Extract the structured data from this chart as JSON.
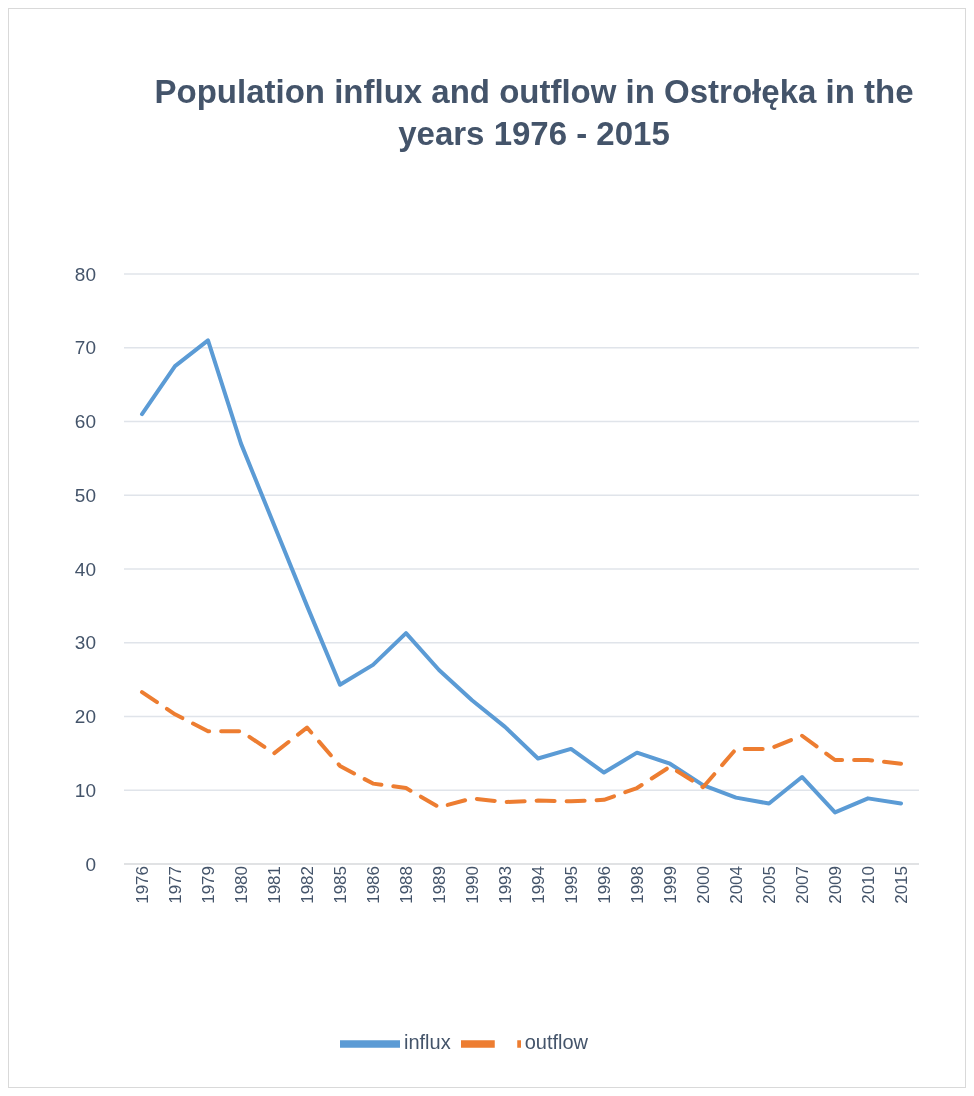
{
  "chart_data": {
    "type": "line",
    "title": "Population influx and outflow in Ostrołęka in the years 1976 - 2015",
    "categories": [
      "1976",
      "1977",
      "1979",
      "1980",
      "1981",
      "1982",
      "1985",
      "1986",
      "1988",
      "1989",
      "1990",
      "1993",
      "1994",
      "1995",
      "1996",
      "1998",
      "1999",
      "2000",
      "2004",
      "2005",
      "2007",
      "2009",
      "2010",
      "2015"
    ],
    "series": [
      {
        "name": "influx",
        "color": "#5b9bd5",
        "line_style": "solid",
        "values": [
          61,
          67.5,
          71,
          57,
          46,
          35,
          24.3,
          27,
          31.3,
          26.3,
          22.2,
          18.6,
          14.3,
          15.6,
          12.4,
          15.1,
          13.6,
          10.7,
          9,
          8.2,
          11.8,
          7,
          8.9,
          8.2
        ]
      },
      {
        "name": "outflow",
        "color": "#ed7d31",
        "line_style": "dashed",
        "values": [
          23.3,
          20.3,
          18,
          18,
          15,
          18.5,
          13.3,
          10.9,
          10.3,
          7.7,
          8.9,
          8.4,
          8.6,
          8.5,
          8.7,
          10.3,
          13.2,
          10.4,
          15.6,
          15.6,
          17.4,
          14.1,
          14.1,
          13.6
        ]
      }
    ],
    "ylim": [
      0,
      80
    ],
    "yticks": [
      0,
      10,
      20,
      30,
      40,
      50,
      60,
      70,
      80
    ],
    "grid": "y",
    "legend": "bottom",
    "marker": "none"
  }
}
